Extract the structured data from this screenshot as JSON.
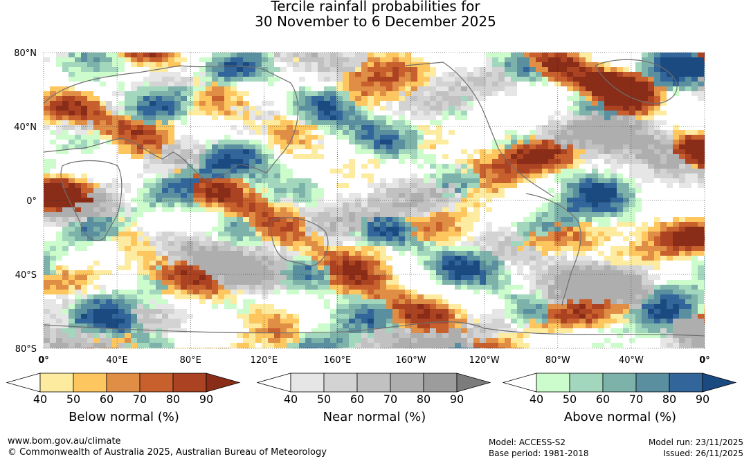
{
  "title": {
    "line1": "Tercile rainfall probabilities for",
    "line2": "30 November to 6 December 2025"
  },
  "map": {
    "lat_labels": [
      "80°N",
      "40°N",
      "0°",
      "40°S",
      "80°S"
    ],
    "lon_labels": [
      "0°",
      "40°E",
      "80°E",
      "120°E",
      "160°E",
      "160°W",
      "120°W",
      "80°W",
      "40°W",
      "0°"
    ],
    "gridlines": "dotted",
    "background": "#ffffff"
  },
  "legends": [
    {
      "title": "Below normal (%)",
      "ticks": [
        "40",
        "50",
        "60",
        "70",
        "80",
        "90"
      ],
      "colors": [
        "#ffffff",
        "#fdeca0",
        "#fdc65e",
        "#e08e45",
        "#c8602e",
        "#ab4323",
        "#8a2d18"
      ]
    },
    {
      "title": "Near normal (%)",
      "ticks": [
        "40",
        "50",
        "60",
        "70",
        "80",
        "90"
      ],
      "colors": [
        "#ffffff",
        "#e6e6e6",
        "#d3d3d3",
        "#c1c1c1",
        "#aeaeae",
        "#9c9c9c",
        "#7c7c7c"
      ]
    },
    {
      "title": "Above normal (%)",
      "ticks": [
        "40",
        "50",
        "60",
        "70",
        "80",
        "90"
      ],
      "colors": [
        "#ffffff",
        "#ccfccc",
        "#a2d7be",
        "#7db2aa",
        "#5a8fa0",
        "#32659a",
        "#1b4a80"
      ]
    }
  ],
  "footer": {
    "url": "www.bom.gov.au/climate",
    "copyright": "© Commonwealth of Australia 2025, Australian Bureau of Meteorology",
    "model": "Model: ACCESS-S2",
    "base_period": "Base period: 1981-2018",
    "model_run": "Model run: 23/11/2025",
    "issued": "Issued: 26/11/2025"
  }
}
